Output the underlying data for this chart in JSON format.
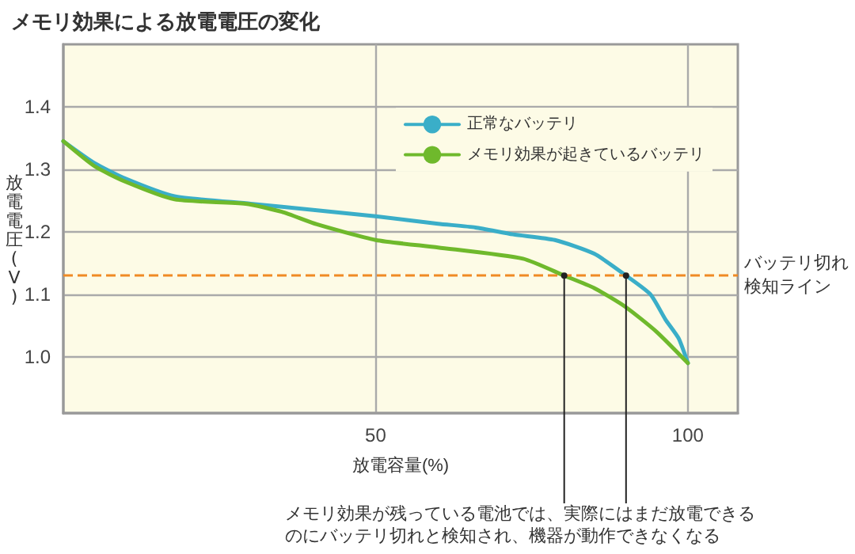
{
  "chart_data": {
    "type": "line",
    "title": "メモリ効果による放電電圧の変化",
    "xlabel": "放電容量(%)",
    "ylabel": "放電電圧(V)",
    "xlim": [
      0,
      108
    ],
    "xticks": [
      50,
      100
    ],
    "ylim": [
      0.91,
      1.5
    ],
    "yticks": [
      {
        "value": 1,
        "label": "1.0"
      },
      1.1,
      1.2,
      1.3,
      1.4
    ],
    "grid": true,
    "legend": "top right",
    "marker": "none",
    "line_style": "solid",
    "series": [
      {
        "name": "正常なバッテリ",
        "color": "#3aaec8",
        "x": [
          0,
          5,
          10,
          17.8,
          30,
          40,
          50,
          60,
          66,
          72,
          78.7,
          85,
          90.1,
          94,
          96.4,
          98.5,
          100
        ],
        "values": [
          1.345,
          1.31,
          1.285,
          1.257,
          1.245,
          1.235,
          1.225,
          1.213,
          1.207,
          1.196,
          1.187,
          1.165,
          1.13,
          1.1,
          1.06,
          1.03,
          0.99
        ]
      },
      {
        "name": "メモリ効果が起きているバッテリ",
        "color": "#6fb92c",
        "x": [
          0,
          5,
          10,
          17.8,
          29.2,
          35,
          40.6,
          50,
          60,
          73.6,
          80.2,
          85,
          90,
          95,
          100
        ],
        "values": [
          1.345,
          1.305,
          1.28,
          1.252,
          1.245,
          1.232,
          1.212,
          1.187,
          1.175,
          1.157,
          1.13,
          1.11,
          1.08,
          1.04,
          0.99
        ]
      }
    ],
    "ref_lines": [
      {
        "axis": "y",
        "value": 1.13,
        "label": "バッテリ切れ検知ライン",
        "color": "#f08a24",
        "line_style": "dashed"
      }
    ],
    "annotations": [
      {
        "text": "メモリ効果が残っている電池では、実際にはまだ放電できるのにバッテリ切れと検知され、機器が動作できなくなる",
        "x": 80.2,
        "y": 1.13
      }
    ]
  }
}
